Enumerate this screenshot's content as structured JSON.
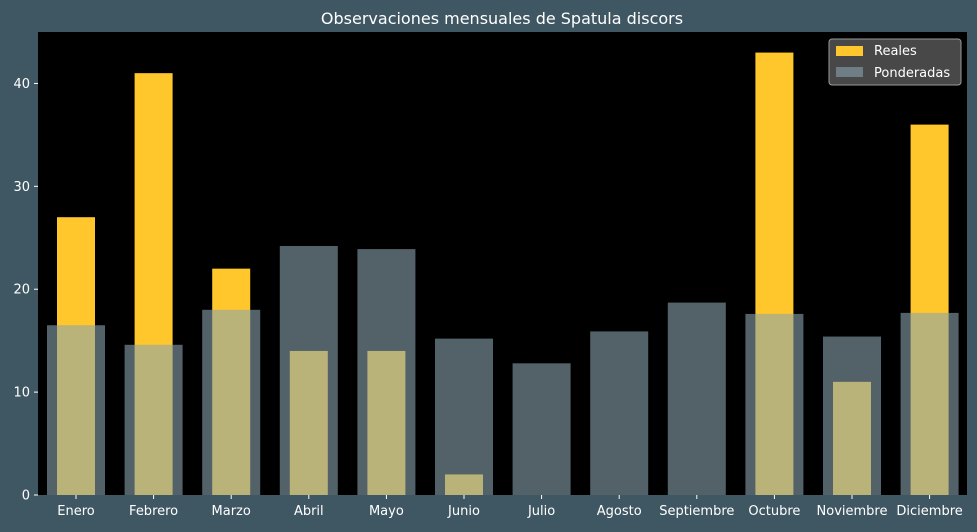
{
  "colors": {
    "figure_bg": "#3f5663",
    "plot_bg": "#000000",
    "reales": "#ffc72c",
    "ponderadas": "#8aa4ad",
    "text": "#ffffff",
    "legend_bg": "#555555"
  },
  "chart_data": {
    "type": "bar",
    "title": "Observaciones mensuales de Spatula discors",
    "xlabel": "",
    "ylabel": "",
    "ylim": [
      0,
      45
    ],
    "yticks": [
      0,
      10,
      20,
      30,
      40
    ],
    "grid": false,
    "legend_position": "top-right",
    "categories": [
      "Enero",
      "Febrero",
      "Marzo",
      "Abril",
      "Mayo",
      "Junio",
      "Julio",
      "Agosto",
      "Septiembre",
      "Octubre",
      "Noviembre",
      "Diciembre"
    ],
    "series": [
      {
        "name": "Reales",
        "color": "#ffc72c",
        "values": [
          27,
          41,
          22,
          14,
          14,
          2,
          0,
          0,
          0,
          43,
          11,
          36
        ]
      },
      {
        "name": "Ponderadas",
        "color": "#8aa4ad",
        "values": [
          16.5,
          14.6,
          18.0,
          24.2,
          23.9,
          15.2,
          12.8,
          15.9,
          18.7,
          17.6,
          15.4,
          17.7
        ]
      }
    ]
  }
}
